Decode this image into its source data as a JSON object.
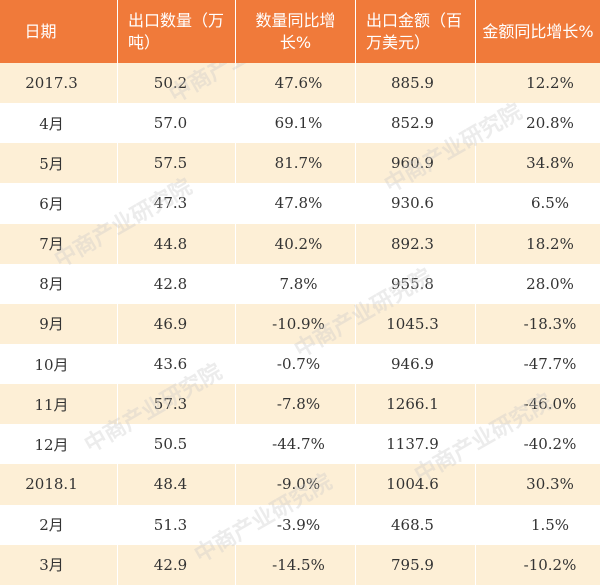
{
  "columns": [
    "日期",
    "出口数量（万\n吨）",
    "数量同比增长%",
    "出口金额（百\n万美元）",
    "金额同比增长%"
  ],
  "rows": [
    [
      "2017.3",
      "50.2",
      "47.6%",
      "885.9",
      "12.2%"
    ],
    [
      "4月",
      "57.0",
      "69.1%",
      "852.9",
      "20.8%"
    ],
    [
      "5月",
      "57.5",
      "81.7%",
      "960.9",
      "34.8%"
    ],
    [
      "6月",
      "47.3",
      "47.8%",
      "930.6",
      "6.5%"
    ],
    [
      "7月",
      "44.8",
      "40.2%",
      "892.3",
      "18.2%"
    ],
    [
      "8月",
      "42.8",
      "7.8%",
      "955.8",
      "28.0%"
    ],
    [
      "9月",
      "46.9",
      "-10.9%",
      "1045.3",
      "-18.3%"
    ],
    [
      "10月",
      "43.6",
      "-0.7%",
      "946.9",
      "-47.7%"
    ],
    [
      "11月",
      "57.3",
      "-7.8%",
      "1266.1",
      "-46.0%"
    ],
    [
      "12月",
      "50.5",
      "-44.7%",
      "1137.9",
      "-40.2%"
    ],
    [
      "2018.1",
      "48.4",
      "-9.0%",
      "1004.6",
      "30.3%"
    ],
    [
      "2月",
      "51.3",
      "-3.9%",
      "468.5",
      "1.5%"
    ],
    [
      "3月",
      "42.9",
      "-14.5%",
      "795.9",
      "-10.2%"
    ]
  ],
  "watermark": "中商产业研究院",
  "colors": {
    "header_bg": "#f07a3a",
    "stripe": "#fdefd6",
    "text": "#333333"
  }
}
